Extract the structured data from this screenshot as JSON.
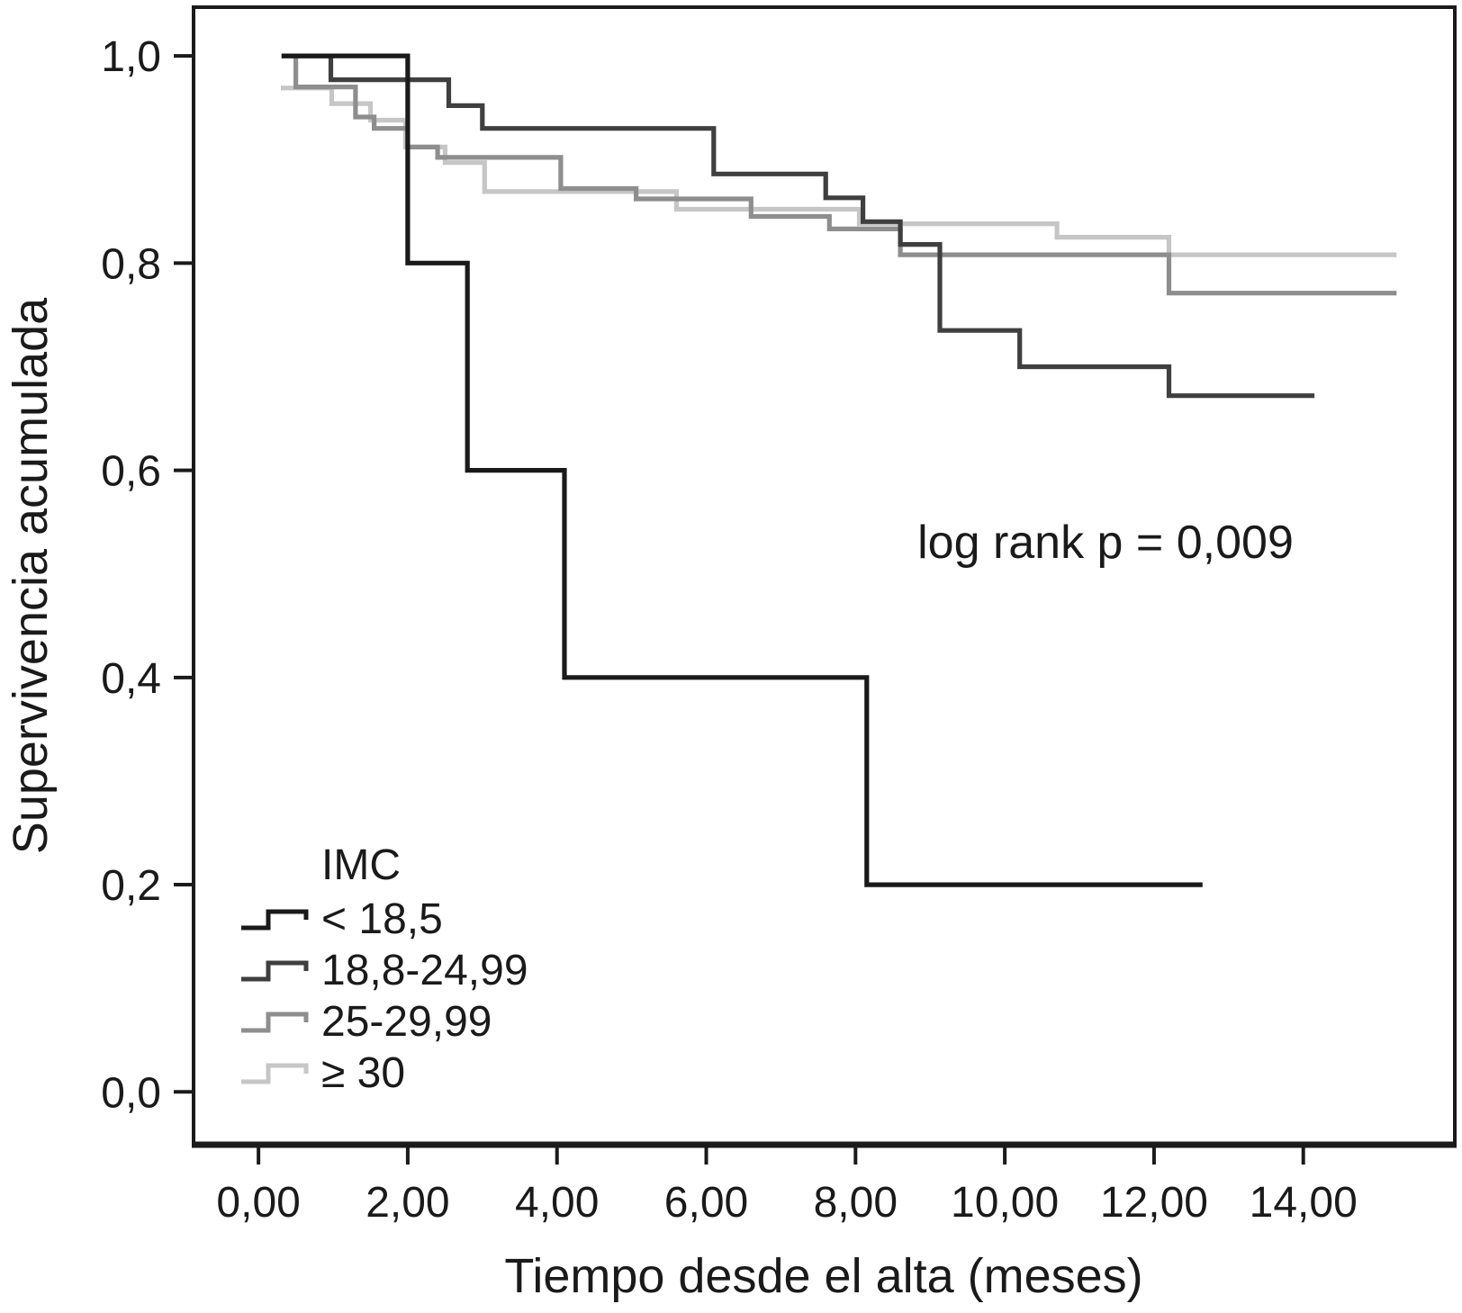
{
  "chart_data": {
    "type": "line",
    "step_style": "kaplan-meier",
    "title": "",
    "xlabel": "Tiempo desde el alta (meses)",
    "ylabel": "Supervivencia acumulada",
    "annotation": "log rank p = 0,009",
    "legend_title": "IMC",
    "legend_position": "lower-left-inside",
    "grid": false,
    "frame_color": "#1a1a1a",
    "xlim": [
      -0.87,
      16.03
    ],
    "ylim": [
      -0.051,
      1.047
    ],
    "x_ticks": {
      "values": [
        0,
        2,
        4,
        6,
        8,
        10,
        12,
        14
      ],
      "labels": [
        "0,00",
        "2,00",
        "4,00",
        "6,00",
        "8,00",
        "10,00",
        "12,00",
        "14,00"
      ]
    },
    "y_ticks": {
      "values": [
        0,
        0.2,
        0.4,
        0.6,
        0.8,
        1.0
      ],
      "labels": [
        "0,0",
        "0,2",
        "0,4",
        "0,6",
        "0,8",
        "1,0"
      ]
    },
    "series": [
      {
        "name": "< 18,5",
        "color": "#1a1a1a",
        "start": [
          0.31,
          1.0
        ],
        "drops": [
          [
            2.0,
            0.8
          ],
          [
            2.8,
            0.6
          ],
          [
            4.1,
            0.4
          ],
          [
            8.15,
            0.2
          ]
        ],
        "end": 12.65
      },
      {
        "name": "18,8-24,99",
        "color": "#3f3f3f",
        "start": [
          0.31,
          1.0
        ],
        "drops": [
          [
            0.97,
            0.977
          ],
          [
            2.55,
            0.952
          ],
          [
            3.0,
            0.93
          ],
          [
            6.1,
            0.886
          ],
          [
            7.6,
            0.863
          ],
          [
            8.1,
            0.84
          ],
          [
            8.6,
            0.818
          ],
          [
            9.13,
            0.735
          ],
          [
            10.2,
            0.7
          ],
          [
            12.2,
            0.672
          ]
        ],
        "end": 14.15
      },
      {
        "name": "25-29,99",
        "color": "#8e8e8e",
        "start": [
          0.45,
          1.0
        ],
        "drops": [
          [
            0.5,
            0.97
          ],
          [
            1.3,
            0.941
          ],
          [
            1.55,
            0.93
          ],
          [
            2.0,
            0.912
          ],
          [
            2.4,
            0.902
          ],
          [
            4.05,
            0.872
          ],
          [
            5.06,
            0.862
          ],
          [
            6.6,
            0.845
          ],
          [
            7.65,
            0.833
          ],
          [
            8.6,
            0.808
          ],
          [
            12.2,
            0.771
          ]
        ],
        "end": 15.25
      },
      {
        "name": "≥ 30",
        "color": "#c6c6c6",
        "start": [
          0.3,
          0.969
        ],
        "drops": [
          [
            0.98,
            0.954
          ],
          [
            1.5,
            0.938
          ],
          [
            1.97,
            0.912
          ],
          [
            2.5,
            0.897
          ],
          [
            3.03,
            0.869
          ],
          [
            5.6,
            0.852
          ],
          [
            8.05,
            0.838
          ],
          [
            10.7,
            0.825
          ],
          [
            12.2,
            0.808
          ]
        ],
        "end": 15.25
      }
    ]
  }
}
